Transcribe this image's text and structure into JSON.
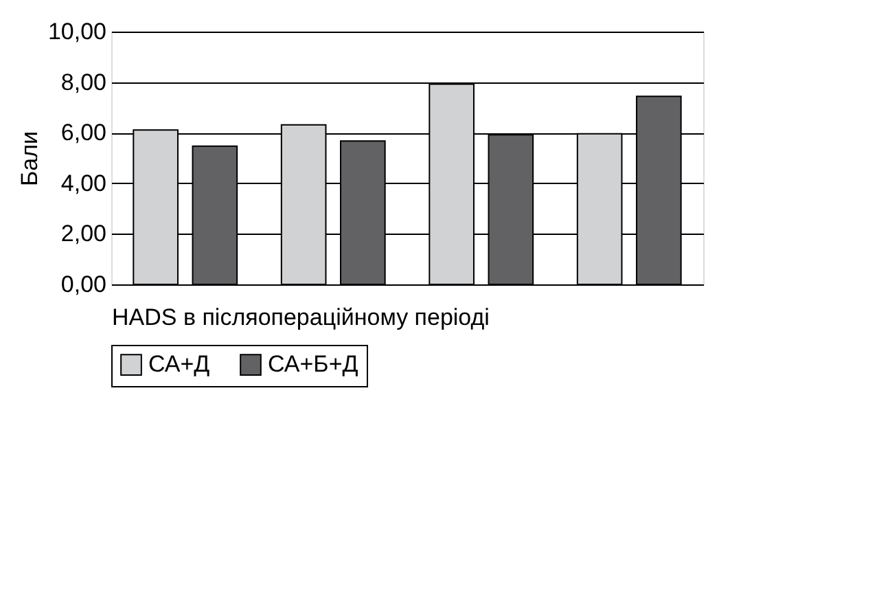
{
  "chart_data": {
    "type": "bar",
    "categories": [
      null,
      null,
      null,
      null
    ],
    "xlabel": "HADS в післяопераційному періоді",
    "ylabel": "Бали",
    "series": [
      {
        "name": "СА+Д",
        "color": "#d1d2d4",
        "values": [
          6.11,
          6.31,
          7.92,
          5.96
        ]
      },
      {
        "name": "СА+Б+Д",
        "color": "#626264",
        "values": [
          5.47,
          5.67,
          5.92,
          7.44
        ]
      }
    ],
    "ylim": [
      0,
      10
    ],
    "yticks": [
      {
        "value": 0,
        "label": "0,00"
      },
      {
        "value": 2,
        "label": "2,00"
      },
      {
        "value": 4,
        "label": "4,00"
      },
      {
        "value": 6,
        "label": "6,00"
      },
      {
        "value": 8,
        "label": "8,00"
      },
      {
        "value": 10,
        "label": "10,00"
      }
    ],
    "grid": "y",
    "legend": "bottom"
  }
}
